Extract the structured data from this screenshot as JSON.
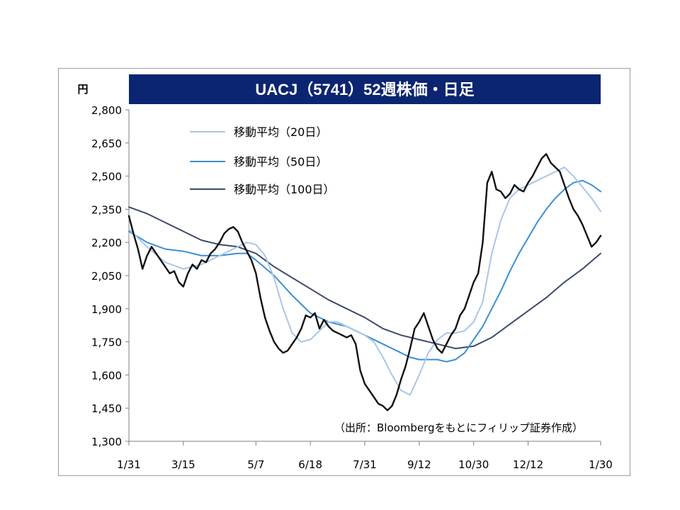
{
  "chart_data": {
    "type": "line",
    "title": "UACJ（5741）52週株価・日足",
    "ylabel": "円",
    "ylim": [
      1300,
      2800
    ],
    "yticks": [
      2800,
      2650,
      2500,
      2350,
      2200,
      2050,
      1900,
      1750,
      1600,
      1450,
      1300
    ],
    "ytick_labels": [
      "2,800",
      "2,650",
      "2,500",
      "2,350",
      "2,200",
      "2,050",
      "1,900",
      "1,750",
      "1,600",
      "1,450",
      "1,300"
    ],
    "xlim": [
      0,
      52
    ],
    "xticks": [
      0,
      6,
      14,
      20,
      26,
      32,
      38,
      44,
      52
    ],
    "xtick_labels": [
      "1/31",
      "3/15",
      "5/7",
      "6/18",
      "7/31",
      "9/12",
      "10/30",
      "12/12",
      "1/30"
    ],
    "grid": false,
    "legend_position": "top-left",
    "annotation": "（出所：Bloombergをもとにフィリップ証券作成）",
    "series": [
      {
        "name": "株価",
        "color": "#111111",
        "x": [
          0,
          0.5,
          1,
          1.5,
          2,
          2.5,
          3,
          3.5,
          4,
          4.5,
          5,
          5.5,
          6,
          6.5,
          7,
          7.5,
          8,
          8.5,
          9,
          9.5,
          10,
          10.5,
          11,
          11.5,
          12,
          12.5,
          13,
          13.5,
          14,
          14.5,
          15,
          15.5,
          16,
          16.5,
          17,
          17.5,
          18,
          18.5,
          19,
          19.5,
          20,
          20.5,
          21,
          21.5,
          22,
          22.5,
          23,
          23.5,
          24,
          24.5,
          25,
          25.5,
          26,
          26.5,
          27,
          27.5,
          28,
          28.5,
          29,
          29.5,
          30,
          30.5,
          31,
          31.5,
          32,
          32.5,
          33,
          33.5,
          34,
          34.5,
          35,
          35.5,
          36,
          36.5,
          37,
          37.5,
          38,
          38.5,
          39,
          39.5,
          40,
          40.5,
          41,
          41.5,
          42,
          42.5,
          43,
          43.5,
          44,
          44.5,
          45,
          45.5,
          46,
          46.5,
          47,
          47.5,
          48,
          48.5,
          49,
          49.5,
          50,
          50.5,
          51,
          51.5,
          52
        ],
        "values": [
          2320,
          2240,
          2170,
          2080,
          2140,
          2180,
          2150,
          2120,
          2090,
          2060,
          2070,
          2020,
          2000,
          2060,
          2100,
          2080,
          2120,
          2110,
          2150,
          2170,
          2200,
          2240,
          2260,
          2270,
          2250,
          2200,
          2160,
          2120,
          2060,
          1950,
          1860,
          1800,
          1750,
          1720,
          1700,
          1710,
          1740,
          1770,
          1810,
          1870,
          1860,
          1880,
          1810,
          1850,
          1820,
          1800,
          1790,
          1780,
          1770,
          1780,
          1740,
          1620,
          1560,
          1530,
          1500,
          1470,
          1460,
          1440,
          1460,
          1510,
          1580,
          1640,
          1720,
          1810,
          1840,
          1880,
          1820,
          1760,
          1720,
          1700,
          1740,
          1780,
          1810,
          1870,
          1900,
          1960,
          2020,
          2060,
          2200,
          2470,
          2520,
          2440,
          2430,
          2400,
          2420,
          2460,
          2440,
          2430,
          2470,
          2500,
          2540,
          2580,
          2600,
          2560,
          2540,
          2520,
          2460,
          2400,
          2350,
          2320,
          2280,
          2230,
          2180,
          2200,
          2230
        ]
      },
      {
        "name": "移動平均（20日）",
        "color": "#a9c6e8",
        "x": [
          0,
          2,
          4,
          6,
          8,
          10,
          12,
          13,
          14,
          15,
          16,
          17,
          18,
          19,
          20,
          21,
          22,
          23,
          24,
          25,
          26,
          27,
          28,
          29,
          30,
          31,
          32,
          33,
          34,
          35,
          36,
          37,
          38,
          39,
          40,
          41,
          42,
          43,
          44,
          45,
          46,
          47,
          48,
          49,
          50,
          51,
          52
        ],
        "values": [
          2260,
          2180,
          2110,
          2080,
          2100,
          2140,
          2180,
          2200,
          2190,
          2140,
          2040,
          1900,
          1790,
          1750,
          1760,
          1800,
          1840,
          1840,
          1820,
          1800,
          1780,
          1750,
          1680,
          1600,
          1530,
          1510,
          1600,
          1700,
          1760,
          1790,
          1790,
          1800,
          1840,
          1930,
          2150,
          2300,
          2400,
          2440,
          2460,
          2480,
          2500,
          2520,
          2540,
          2500,
          2450,
          2400,
          2340
        ]
      },
      {
        "name": "移動平均（50日）",
        "color": "#3b8fd4",
        "x": [
          0,
          2,
          4,
          6,
          8,
          10,
          12,
          13,
          14,
          16,
          18,
          20,
          22,
          24,
          26,
          28,
          30,
          31,
          32,
          34,
          35,
          36,
          37,
          38,
          39,
          40,
          41,
          42,
          43,
          44,
          45,
          46,
          47,
          48,
          49,
          50,
          51,
          52
        ],
        "values": [
          2250,
          2200,
          2170,
          2160,
          2140,
          2140,
          2150,
          2150,
          2120,
          2050,
          1960,
          1880,
          1840,
          1820,
          1780,
          1740,
          1700,
          1680,
          1670,
          1670,
          1660,
          1670,
          1700,
          1760,
          1820,
          1900,
          1980,
          2070,
          2150,
          2220,
          2290,
          2350,
          2400,
          2440,
          2470,
          2480,
          2460,
          2430
        ]
      },
      {
        "name": "移動平均（100日）",
        "color": "#3d4a6b",
        "x": [
          0,
          2,
          4,
          6,
          8,
          10,
          12,
          14,
          16,
          18,
          20,
          22,
          24,
          26,
          28,
          30,
          32,
          34,
          36,
          38,
          40,
          42,
          44,
          46,
          48,
          50,
          52
        ],
        "values": [
          2360,
          2330,
          2290,
          2250,
          2210,
          2190,
          2180,
          2150,
          2090,
          2040,
          1990,
          1940,
          1900,
          1860,
          1810,
          1780,
          1760,
          1740,
          1720,
          1730,
          1770,
          1830,
          1890,
          1950,
          2020,
          2080,
          2150
        ]
      }
    ]
  }
}
